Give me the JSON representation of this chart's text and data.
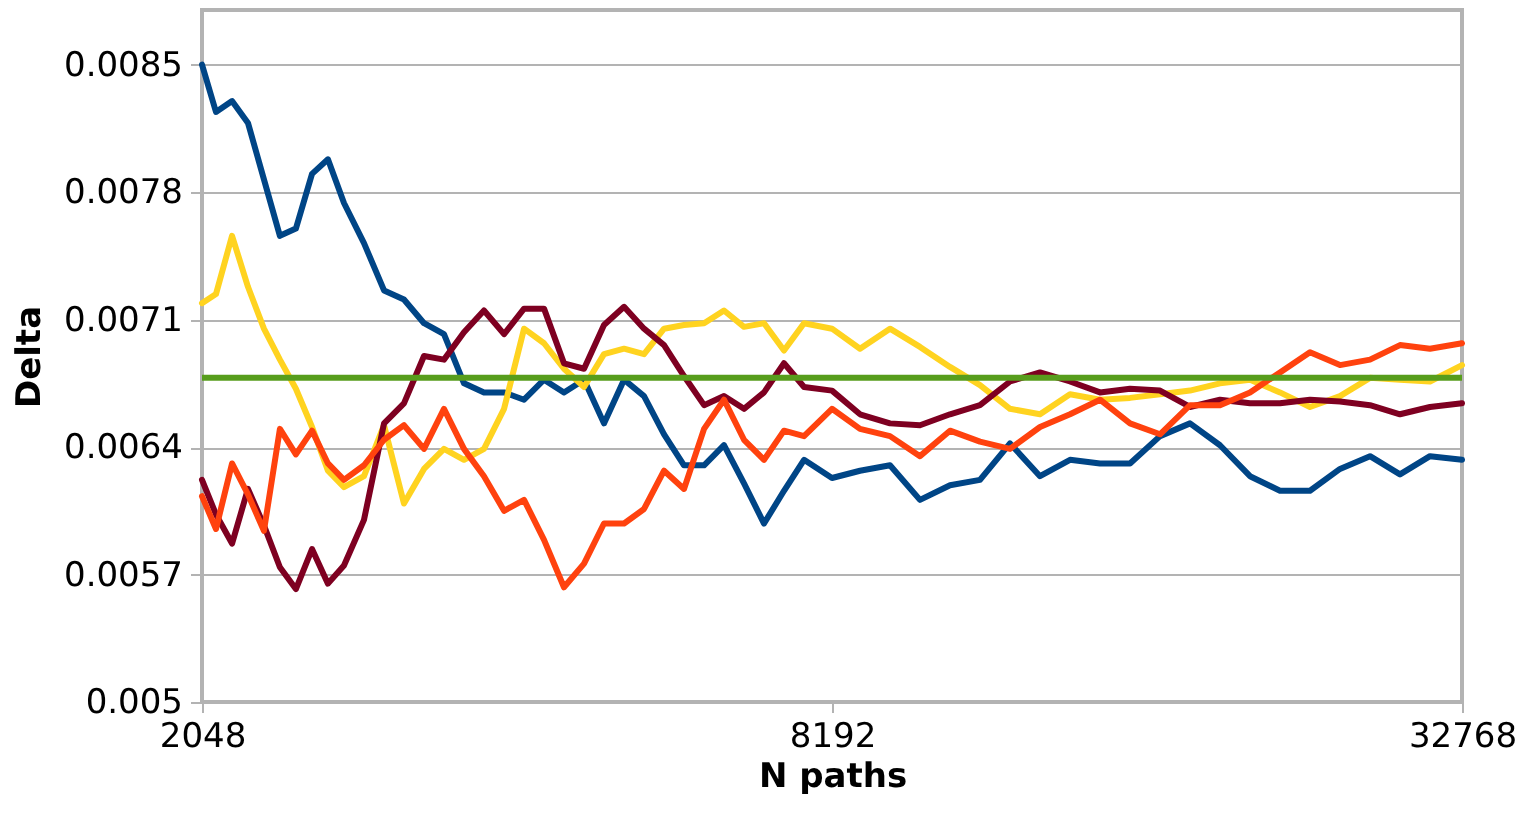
{
  "chart_data": {
    "type": "line",
    "xlabel": "N paths",
    "ylabel": "Delta",
    "log": "x",
    "xlim": [
      2048,
      32768
    ],
    "xticks": [
      2048,
      8192,
      32768
    ],
    "ylim": [
      0.005,
      0.0088
    ],
    "yticks": [
      0.005,
      0.0057,
      0.0064,
      0.0071,
      0.0078,
      0.0085
    ],
    "grid": "y",
    "line_style": "solid",
    "x": [
      2048,
      2112,
      2188,
      2266,
      2347,
      2431,
      2518,
      2609,
      2702,
      2799,
      2925,
      3057,
      3194,
      3338,
      3488,
      3645,
      3809,
      3981,
      4160,
      4347,
      4542,
      4747,
      4960,
      5184,
      5417,
      5661,
      5915,
      6182,
      6459,
      6750,
      7054,
      7371,
      7703,
      8192,
      8713,
      9307,
      9942,
      10621,
      11345,
      12120,
      12947,
      13831,
      14775,
      15783,
      16860,
      18010,
      19239,
      20552,
      21954,
      23452,
      25052,
      26762,
      28588,
      30539,
      32768
    ],
    "series": [
      {
        "color": "#004586",
        "values": [
          0.0085,
          0.00824,
          0.0083,
          0.00818,
          0.00787,
          0.00756,
          0.0076,
          0.0079,
          0.00798,
          0.00774,
          0.00752,
          0.00726,
          0.00721,
          0.00708,
          0.00702,
          0.00675,
          0.0067,
          0.0067,
          0.00666,
          0.00677,
          0.0067,
          0.00677,
          0.00653,
          0.00677,
          0.00668,
          0.00647,
          0.0063,
          0.0063,
          0.00641,
          0.0062,
          0.00598,
          0.00616,
          0.00633,
          0.00623,
          0.00627,
          0.0063,
          0.00611,
          0.00619,
          0.00622,
          0.00642,
          0.00624,
          0.00633,
          0.00631,
          0.00631,
          0.00646,
          0.00653,
          0.00641,
          0.00624,
          0.00616,
          0.00616,
          0.00628,
          0.00635,
          0.00625,
          0.00635,
          0.00633
        ]
      },
      {
        "color": "#ffd320",
        "values": [
          0.00719,
          0.00724,
          0.00756,
          0.00728,
          0.00705,
          0.00688,
          0.00672,
          0.00651,
          0.00627,
          0.00618,
          0.00624,
          0.00652,
          0.00609,
          0.00628,
          0.00639,
          0.00633,
          0.00639,
          0.00661,
          0.00705,
          0.00697,
          0.00683,
          0.00673,
          0.00691,
          0.00694,
          0.00691,
          0.00705,
          0.00707,
          0.00708,
          0.00715,
          0.00706,
          0.00708,
          0.00693,
          0.00708,
          0.00705,
          0.00694,
          0.00705,
          0.00695,
          0.00684,
          0.00674,
          0.00661,
          0.00658,
          0.00669,
          0.00666,
          0.00667,
          0.00669,
          0.00671,
          0.00675,
          0.00677,
          0.0067,
          0.00662,
          0.00668,
          0.00678,
          0.00677,
          0.00676,
          0.00685
        ]
      },
      {
        "color": "#7e0021",
        "values": [
          0.00622,
          0.00603,
          0.00587,
          0.00617,
          0.00597,
          0.00574,
          0.00562,
          0.00584,
          0.00565,
          0.00575,
          0.006,
          0.00653,
          0.00664,
          0.0069,
          0.00688,
          0.00703,
          0.00715,
          0.00702,
          0.00716,
          0.00716,
          0.00686,
          0.00683,
          0.00707,
          0.00717,
          0.00705,
          0.00696,
          0.00679,
          0.00663,
          0.00668,
          0.00661,
          0.0067,
          0.00686,
          0.00673,
          0.00671,
          0.00658,
          0.00653,
          0.00652,
          0.00658,
          0.00663,
          0.00676,
          0.00681,
          0.00676,
          0.0067,
          0.00672,
          0.00671,
          0.00662,
          0.00666,
          0.00664,
          0.00664,
          0.00666,
          0.00665,
          0.00663,
          0.00658,
          0.00662,
          0.00664
        ]
      },
      {
        "color": "#ff420e",
        "values": [
          0.00613,
          0.00595,
          0.00631,
          0.00614,
          0.00594,
          0.0065,
          0.00636,
          0.00649,
          0.00631,
          0.00622,
          0.0063,
          0.00644,
          0.00652,
          0.00639,
          0.00661,
          0.00639,
          0.00624,
          0.00605,
          0.00611,
          0.00589,
          0.00563,
          0.00576,
          0.00598,
          0.00598,
          0.00606,
          0.00627,
          0.00617,
          0.0065,
          0.00666,
          0.00644,
          0.00633,
          0.00649,
          0.00646,
          0.00661,
          0.0065,
          0.00646,
          0.00635,
          0.00649,
          0.00643,
          0.00639,
          0.00651,
          0.00658,
          0.00666,
          0.00653,
          0.00647,
          0.00663,
          0.00663,
          0.0067,
          0.00681,
          0.00692,
          0.00685,
          0.00688,
          0.00696,
          0.00694,
          0.00697
        ]
      }
    ],
    "ref_lines": [
      {
        "axis": "y",
        "value": 0.00678,
        "color": "#579d1c"
      }
    ]
  }
}
